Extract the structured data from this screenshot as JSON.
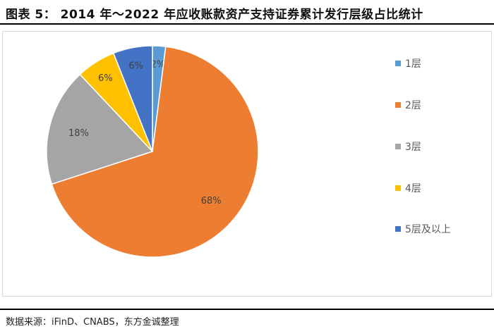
{
  "title": "图表 5：  2014 年～2022 年应收账款资产支持证券累计发行层级占比统计",
  "source": "数据来源：iFinD、CNABS，东方金诚整理",
  "chart_data": {
    "type": "pie",
    "title": "",
    "legend_position": "right",
    "categories": [
      "1层",
      "2层",
      "3层",
      "4层",
      "5层及以上"
    ],
    "values": [
      2,
      68,
      18,
      6,
      6
    ],
    "labels": [
      "2%",
      "68%",
      "18%",
      "6%",
      "6%"
    ],
    "colors": [
      "#5B9BD5",
      "#ED7D31",
      "#A5A5A5",
      "#FFC000",
      "#4472C4"
    ]
  }
}
